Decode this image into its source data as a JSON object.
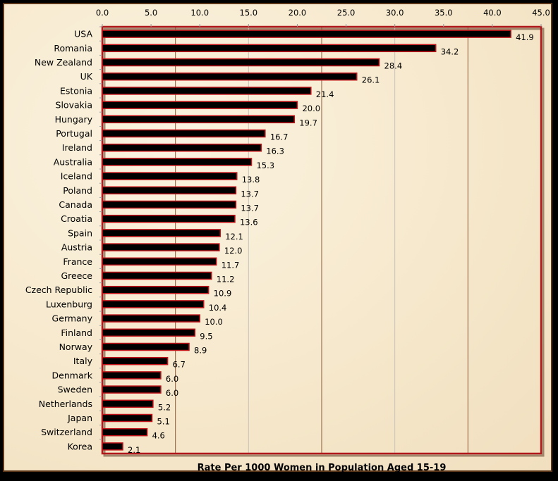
{
  "chart_data": {
    "type": "bar",
    "orientation": "horizontal",
    "categories": [
      "USA",
      "Romania",
      "New Zealand",
      "UK",
      "Estonia",
      "Slovakia",
      "Hungary",
      "Portugal",
      "Ireland",
      "Australia",
      "Iceland",
      "Poland",
      "Canada",
      "Croatia",
      "Spain",
      "Austria",
      "France",
      "Greece",
      "Czech Republic",
      "Luxenburg",
      "Germany",
      "Finland",
      "Norway",
      "Italy",
      "Denmark",
      "Sweden",
      "Netherlands",
      "Japan",
      "Switzerland",
      "Korea"
    ],
    "values": [
      41.9,
      34.2,
      28.4,
      26.1,
      21.4,
      20.0,
      19.7,
      16.7,
      16.3,
      15.3,
      13.8,
      13.7,
      13.7,
      13.6,
      12.1,
      12.0,
      11.7,
      11.2,
      10.9,
      10.4,
      10.0,
      9.5,
      8.9,
      6.7,
      6.0,
      6.0,
      5.2,
      5.1,
      4.6,
      2.1
    ],
    "data_labels": [
      "41.9",
      "34.2",
      "28.4",
      "26.1",
      "21.4",
      "20.0",
      "19.7",
      "16.7",
      "16.3",
      "15.3",
      "13.8",
      "13.7",
      "13.7",
      "13.6",
      "12.1",
      "12.0",
      "11.7",
      "11.2",
      "10.9",
      "10.4",
      "10.0",
      "9.5",
      "8.9",
      "6.7",
      "6.0",
      "6.0",
      "5.2",
      "5.1",
      "4.6",
      "2.1"
    ],
    "xlabel": "Rate Per 1000 Women in Population Aged 15-19",
    "xlim": [
      0,
      45
    ],
    "x_ticks": [
      "0.0",
      "5.0",
      "10.0",
      "15.0",
      "20.0",
      "25.0",
      "30.0",
      "35.0",
      "40.0",
      "45.0"
    ],
    "x_axis_position": "top",
    "grid": true,
    "colors": {
      "bar": "#000000",
      "bar_outline": "#c0141a",
      "plot_border": "#b0181c",
      "gridline": "#8a5a3a",
      "background": "#f6e8cc"
    }
  }
}
